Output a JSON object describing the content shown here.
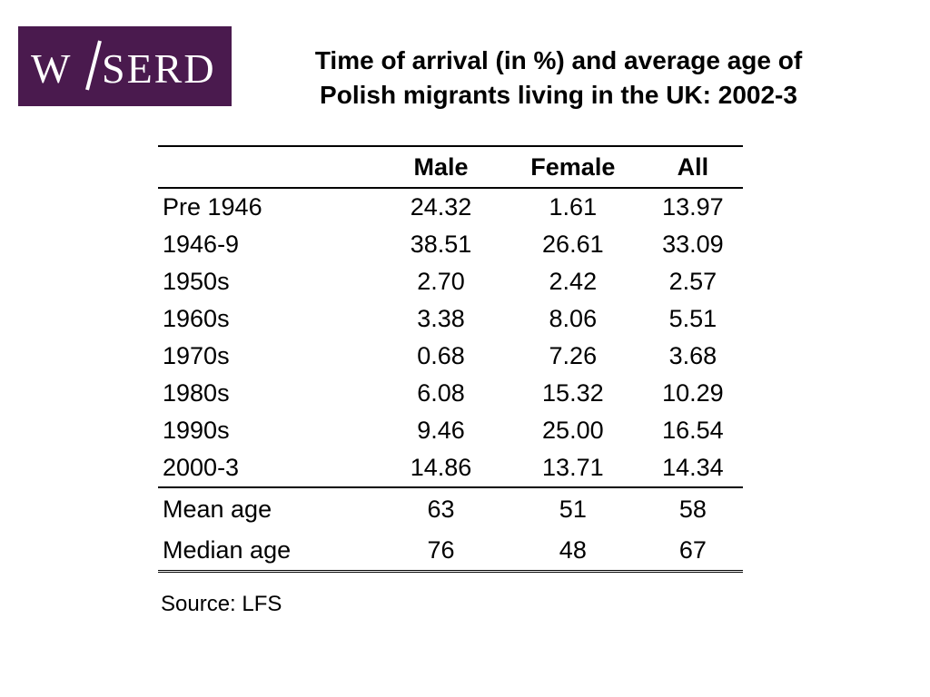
{
  "logo": {
    "text_left": "W",
    "text_right": "SERD",
    "bg_color": "#4a1a4e"
  },
  "title": {
    "line1": "Time of arrival (in %) and average age of",
    "line2": "Polish migrants living in the UK: 2002-3"
  },
  "table": {
    "headers": [
      "",
      "Male",
      "Female",
      "All"
    ],
    "arrival_rows": [
      {
        "label": "Pre 1946",
        "male": "24.32",
        "female": "1.61",
        "all": "13.97"
      },
      {
        "label": "1946-9",
        "male": "38.51",
        "female": "26.61",
        "all": "33.09"
      },
      {
        "label": "1950s",
        "male": "2.70",
        "female": "2.42",
        "all": "2.57"
      },
      {
        "label": "1960s",
        "male": "3.38",
        "female": "8.06",
        "all": "5.51"
      },
      {
        "label": "1970s",
        "male": "0.68",
        "female": "7.26",
        "all": "3.68"
      },
      {
        "label": "1980s",
        "male": "6.08",
        "female": "15.32",
        "all": "10.29"
      },
      {
        "label": "1990s",
        "male": "9.46",
        "female": "25.00",
        "all": "16.54"
      },
      {
        "label": "2000-3",
        "male": "14.86",
        "female": "13.71",
        "all": "14.34"
      }
    ],
    "age_rows": [
      {
        "label": "Mean age",
        "male": "63",
        "female": "51",
        "all": "58"
      },
      {
        "label": "Median age",
        "male": "76",
        "female": "48",
        "all": "67"
      }
    ]
  },
  "source": "Source: LFS"
}
